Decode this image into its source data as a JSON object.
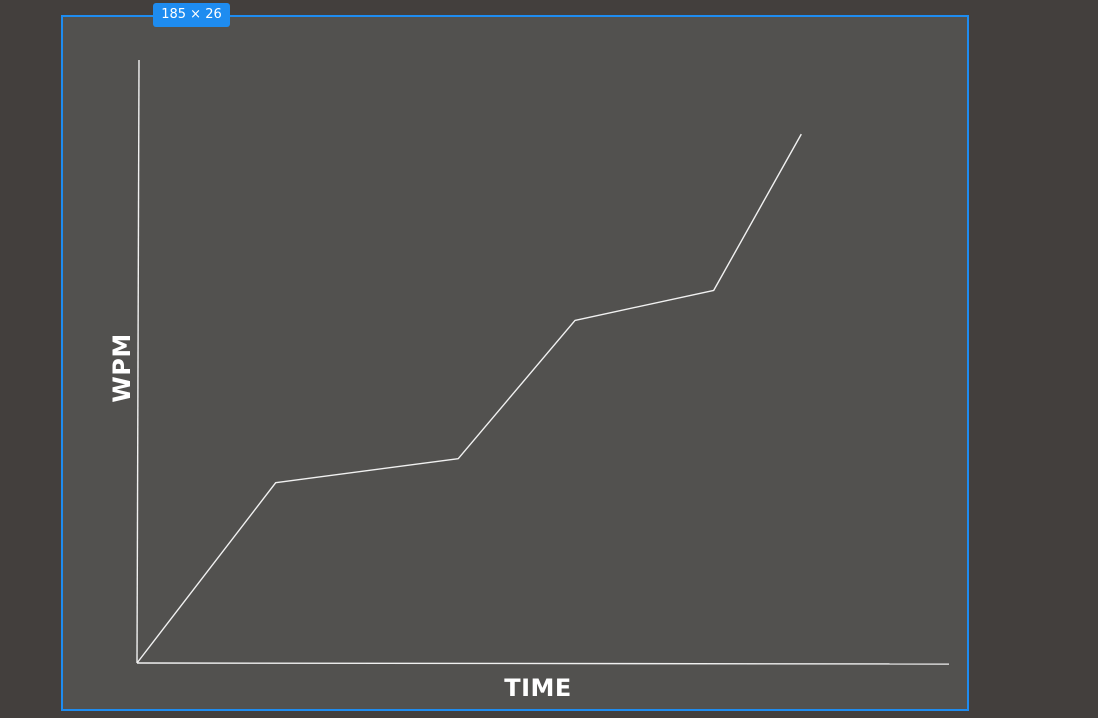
{
  "selection": {
    "size_badge": "185 × 26",
    "accent_color": "#1e8cf0"
  },
  "colors": {
    "workspace_background": "#433f3d",
    "frame_background": "#52514f",
    "line_color": "#f1f1f1"
  },
  "chart_data": {
    "type": "line",
    "title": "",
    "xlabel": "TIME",
    "ylabel": "WPM",
    "grid": false,
    "legend": "none",
    "xlim": [
      0,
      10
    ],
    "ylim": [
      0,
      10
    ],
    "x": [
      0,
      1.9,
      4.4,
      6,
      7.9,
      9.1
    ],
    "series": [
      {
        "name": "",
        "values": [
          0,
          3,
          3.4,
          5.7,
          6.2,
          8.8
        ]
      }
    ]
  }
}
